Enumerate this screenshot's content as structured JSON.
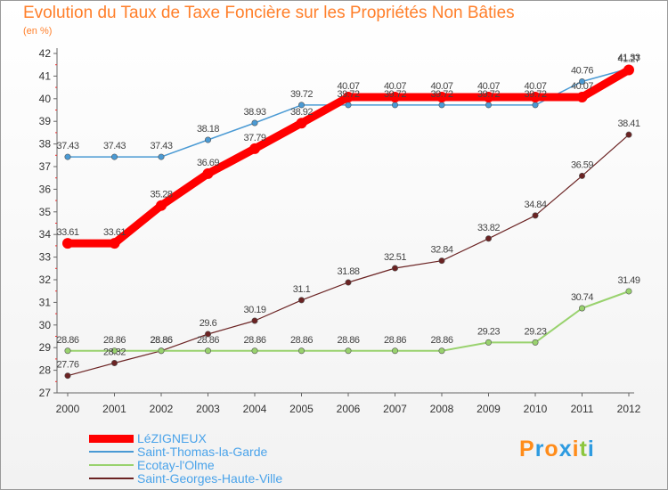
{
  "chart_data": {
    "type": "line",
    "title": "Evolution du Taux de Taxe Foncière sur les Propriétés Non Bâties",
    "subtitle": "(en %)",
    "x": [
      "2000",
      "2001",
      "2002",
      "2003",
      "2004",
      "2005",
      "2006",
      "2007",
      "2008",
      "2009",
      "2010",
      "2011",
      "2012"
    ],
    "ylim": [
      27,
      42
    ],
    "yticks": [
      27,
      28,
      29,
      30,
      31,
      32,
      33,
      34,
      35,
      36,
      37,
      38,
      39,
      40,
      41,
      42
    ],
    "grid": false,
    "legend_position": "bottom-left",
    "series": [
      {
        "name": "LéZIGNEUX",
        "color": "#ff0000",
        "values": [
          33.61,
          33.61,
          35.28,
          36.69,
          37.79,
          38.92,
          40.07,
          40.07,
          40.07,
          40.07,
          40.07,
          40.07,
          41.27
        ],
        "labels": [
          "33.61",
          "33.61",
          "35.28",
          "36.69",
          "37.79",
          "38.92",
          "40.07",
          "40.07",
          "40.07",
          "40.07",
          "40.07",
          "40.07",
          "41.27"
        ]
      },
      {
        "name": "Saint-Thomas-la-Garde",
        "color": "#4a9ad4",
        "values": [
          37.43,
          37.43,
          37.43,
          38.18,
          38.93,
          39.72,
          39.72,
          39.72,
          39.72,
          39.72,
          39.72,
          40.76,
          41.33
        ],
        "labels": [
          "37.43",
          "37.43",
          "37.43",
          "38.18",
          "38.93",
          "39.72",
          "39.72",
          "39.72",
          "39.72",
          "39.72",
          "39.72",
          "40.76",
          "41.33"
        ]
      },
      {
        "name": "Ecotay-l'Olme",
        "color": "#99d26e",
        "values": [
          28.86,
          28.86,
          28.86,
          28.86,
          28.86,
          28.86,
          28.86,
          28.86,
          28.86,
          29.23,
          29.23,
          30.74,
          31.49
        ],
        "labels": [
          "28.86",
          "28.86",
          "28.86",
          "28.86",
          "28.86",
          "28.86",
          "28.86",
          "28.86",
          "28.86",
          "29.23",
          "29.23",
          "30.74",
          "31.49"
        ]
      },
      {
        "name": "Saint-Georges-Haute-Ville",
        "color": "#6b2323",
        "values": [
          27.76,
          28.32,
          28.86,
          29.6,
          30.19,
          31.1,
          31.88,
          32.51,
          32.84,
          33.82,
          34.84,
          36.59,
          38.41
        ],
        "labels": [
          "27.76",
          "28.32",
          "28.86",
          "29.6",
          "30.19",
          "31.1",
          "31.88",
          "32.51",
          "32.84",
          "33.82",
          "34.84",
          "36.59",
          "38.41"
        ]
      }
    ]
  },
  "logo": {
    "text": "Proxiti",
    "letters": [
      "P",
      "r",
      "o",
      "x",
      "i",
      "t",
      "i"
    ],
    "colors": [
      "#ff8c1a",
      "#2e9be0",
      "#ff8c1a",
      "#2e9be0",
      "#ff8c1a",
      "#8cc63e",
      "#2e9be0"
    ]
  }
}
